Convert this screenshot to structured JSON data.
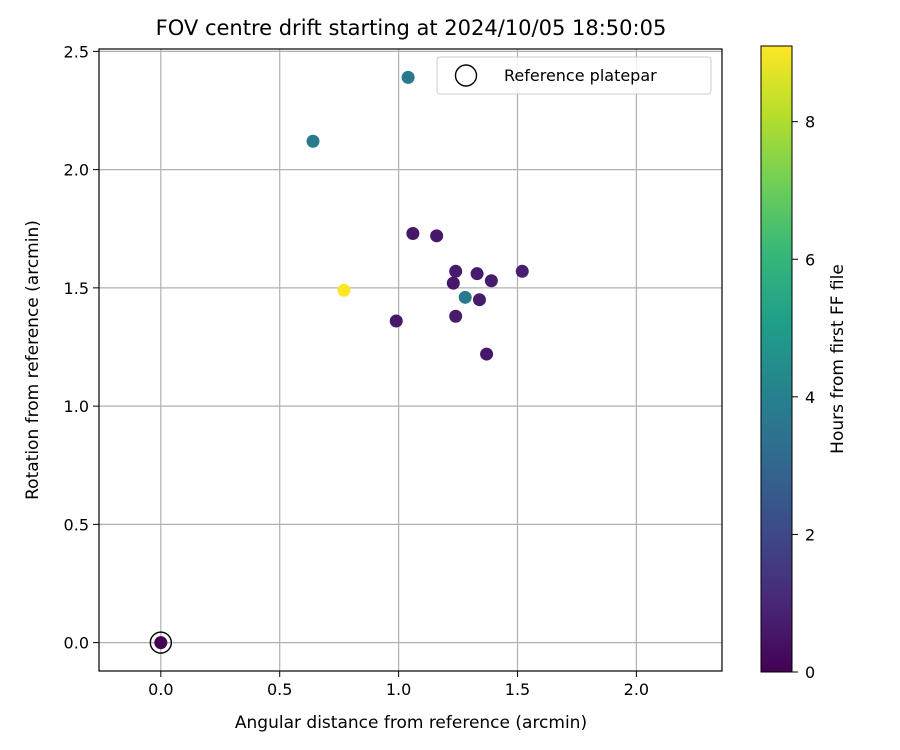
{
  "chart_data": {
    "type": "scatter",
    "title": "FOV centre drift starting at 2024/10/05 18:50:05",
    "xlabel": "Angular distance from reference (arcmin)",
    "ylabel": "Rotation from reference (arcmin)",
    "xlim": [
      -0.26,
      2.36
    ],
    "ylim": [
      -0.12,
      2.51
    ],
    "xticks": [
      0.0,
      0.5,
      1.0,
      1.5,
      2.0
    ],
    "yticks": [
      0.0,
      0.5,
      1.0,
      1.5,
      2.0,
      2.5
    ],
    "grid": true,
    "legend": {
      "placement": "top-right",
      "entries": [
        "Reference platepar"
      ]
    },
    "colorbar": {
      "label": "Hours from first FF file",
      "range": [
        0,
        9.1
      ],
      "ticks": [
        0,
        2,
        4,
        6,
        8
      ],
      "colormap": "viridis"
    },
    "reference_point": {
      "x": 0.0,
      "y": 0.0
    },
    "points": [
      {
        "x": 0.0,
        "y": 0.0,
        "hours": 0.0
      },
      {
        "x": 1.04,
        "y": 2.39,
        "hours": 3.6
      },
      {
        "x": 0.64,
        "y": 2.12,
        "hours": 3.7
      },
      {
        "x": 1.06,
        "y": 1.73,
        "hours": 0.6
      },
      {
        "x": 1.16,
        "y": 1.72,
        "hours": 0.6
      },
      {
        "x": 1.24,
        "y": 1.57,
        "hours": 0.7
      },
      {
        "x": 1.33,
        "y": 1.56,
        "hours": 0.7
      },
      {
        "x": 1.52,
        "y": 1.57,
        "hours": 0.8
      },
      {
        "x": 1.23,
        "y": 1.52,
        "hours": 0.6
      },
      {
        "x": 1.39,
        "y": 1.53,
        "hours": 0.7
      },
      {
        "x": 1.28,
        "y": 1.46,
        "hours": 3.7
      },
      {
        "x": 1.34,
        "y": 1.45,
        "hours": 0.7
      },
      {
        "x": 0.77,
        "y": 1.49,
        "hours": 9.1
      },
      {
        "x": 0.99,
        "y": 1.36,
        "hours": 0.6
      },
      {
        "x": 1.24,
        "y": 1.38,
        "hours": 0.7
      },
      {
        "x": 1.37,
        "y": 1.22,
        "hours": 0.6
      }
    ],
    "colors": {
      "grid": "#b0b0b0",
      "axis": "#000000",
      "legend_border": "#cccccc",
      "viridis": [
        "#440154",
        "#482878",
        "#3e4989",
        "#31688e",
        "#26828e",
        "#1f9e89",
        "#35b779",
        "#6ece58",
        "#b5de2b",
        "#fde725"
      ]
    }
  }
}
